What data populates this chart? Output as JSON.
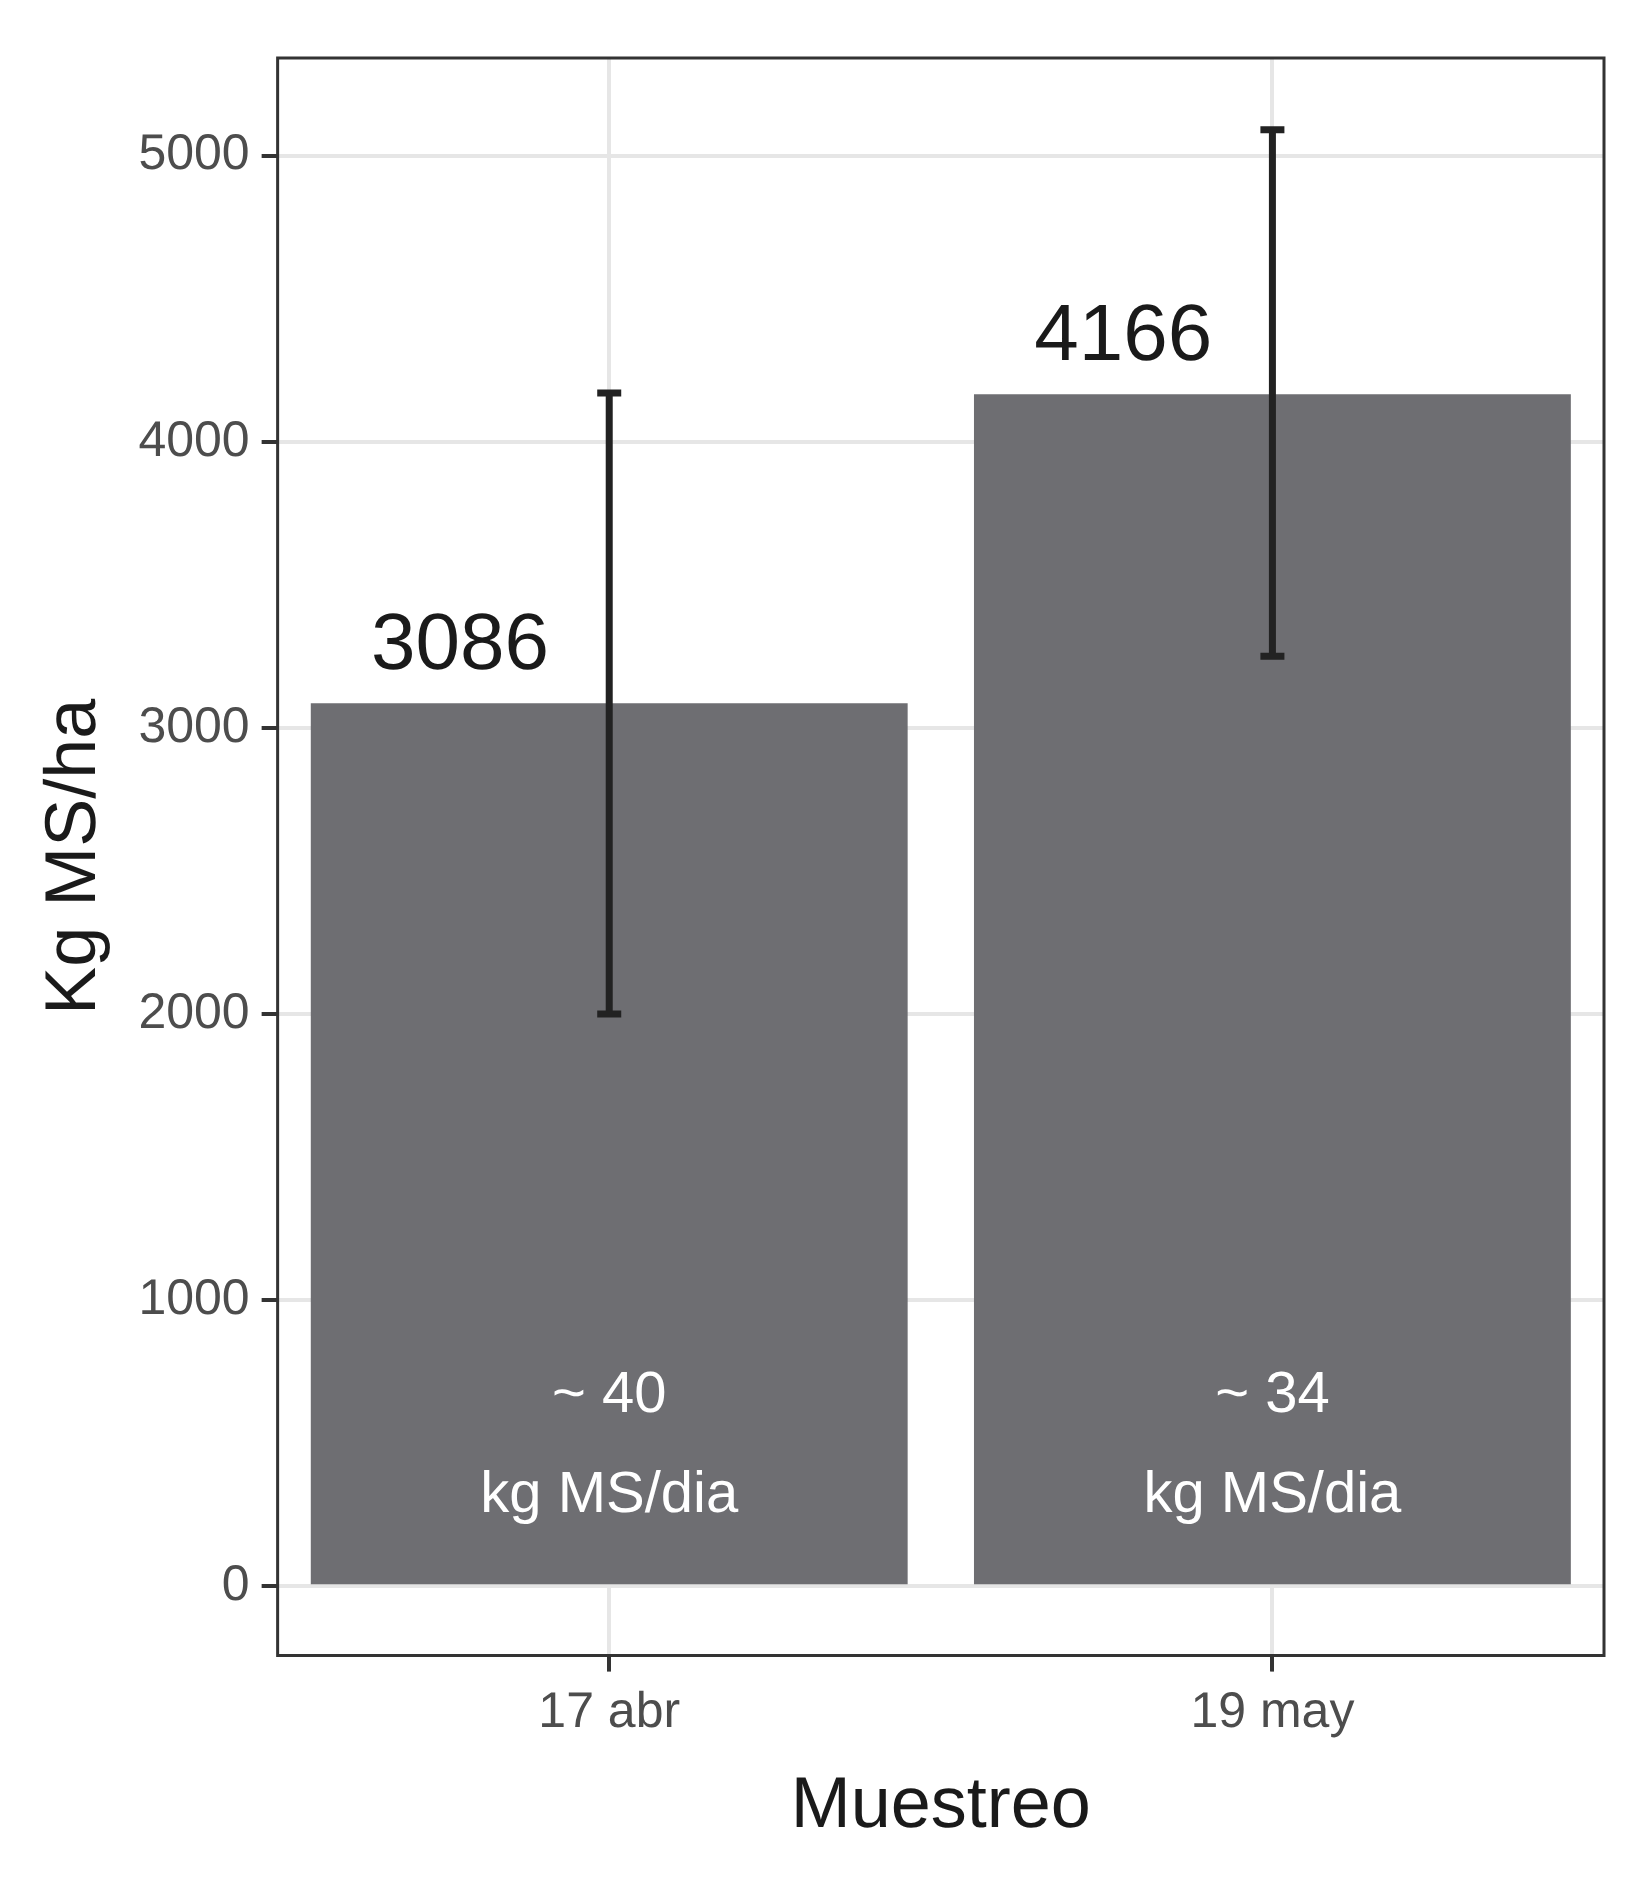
{
  "chart_data": {
    "type": "bar",
    "xlabel": "Muestreo",
    "ylabel": "Kg MS/ha",
    "categories": [
      "17 abr",
      "19 may"
    ],
    "values": [
      3086,
      4166
    ],
    "color": "#6e6e72",
    "errors": [
      [
        2000,
        4170
      ],
      [
        3250,
        5090
      ]
    ],
    "data_labels": true,
    "ylim": [
      -242,
      5341
    ],
    "yticks": [
      0,
      1000,
      2000,
      3000,
      4000,
      5000
    ],
    "grid": true,
    "annotations": [
      "~ 40\nkg MS/dia",
      "~ 34\nkg MS/dia"
    ]
  }
}
